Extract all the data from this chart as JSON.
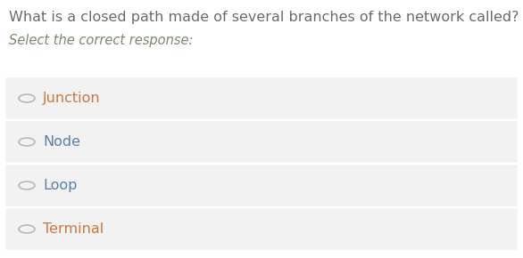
{
  "question": "What is a closed path made of several branches of the network called?",
  "subtitle": "Select the correct response:",
  "options": [
    "Junction",
    "Node",
    "Loop",
    "Terminal"
  ],
  "option_colors": [
    "#c87840",
    "#5b7fa6",
    "#5b7fa6",
    "#c87840"
  ],
  "question_color": "#6b6b6b",
  "subtitle_color": "#7a8a6a",
  "bg_color": "#ffffff",
  "option_bg_color": "#f2f2f2",
  "radio_edge_color": "#b8b8b8",
  "radio_fill_color": "#f2f2f2",
  "font_size_question": 11.5,
  "font_size_subtitle": 10.5,
  "font_size_option": 11.5,
  "fig_width": 5.86,
  "fig_height": 2.9,
  "dpi": 100
}
